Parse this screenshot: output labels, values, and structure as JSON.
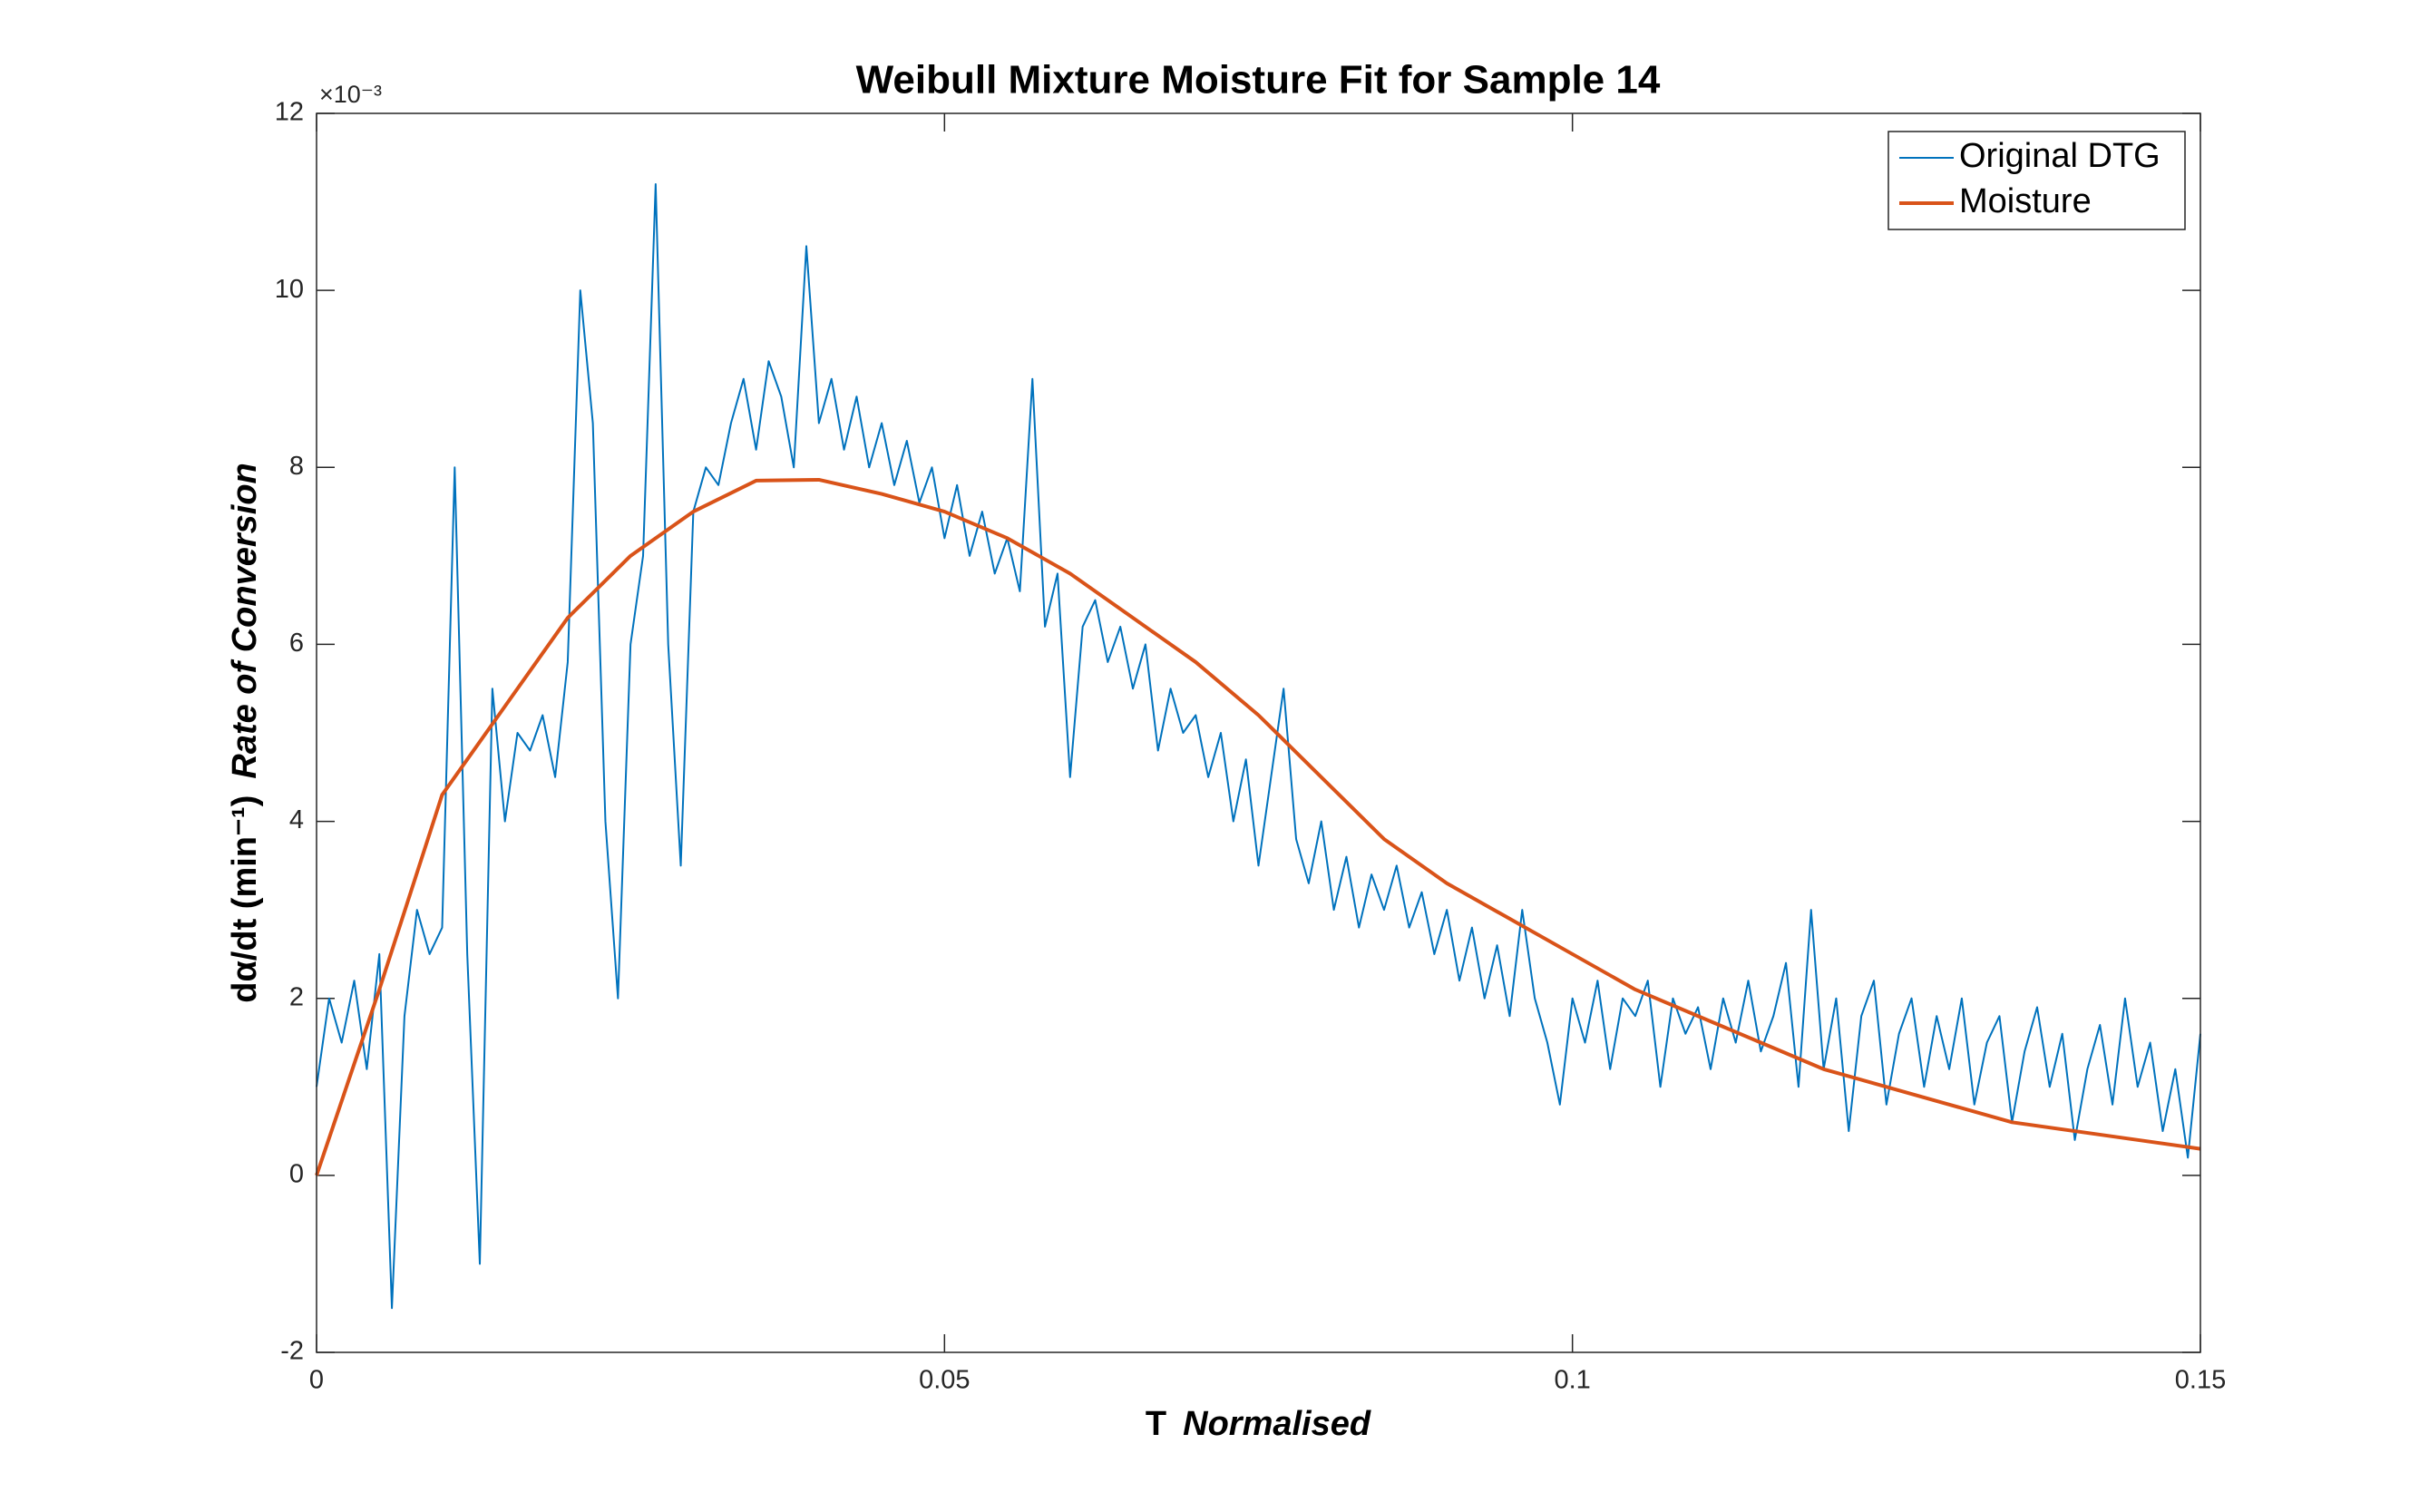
{
  "chart_data": {
    "type": "line",
    "title": "Weibull Mixture Moisture Fit for Sample 14",
    "xlabel": "T",
    "xlabel_note": "Normalised",
    "ylabel": "dα/dt (min⁻¹)",
    "ylabel_note": "Rate of Conversion",
    "y_exponent": "×10⁻³",
    "xlim": [
      0,
      0.15
    ],
    "xticks": [
      0,
      0.05,
      0.1,
      0.15
    ],
    "ylim": [
      -0.002,
      0.012
    ],
    "yticks": [
      {
        "value": -0.002,
        "label": "-2"
      },
      {
        "value": 0,
        "label": "0"
      },
      {
        "value": 0.002,
        "label": "2"
      },
      {
        "value": 0.004,
        "label": "4"
      },
      {
        "value": 0.006,
        "label": "6"
      },
      {
        "value": 0.008,
        "label": "8"
      },
      {
        "value": 0.01,
        "label": "10"
      },
      {
        "value": 0.012,
        "label": "12"
      }
    ],
    "legend": "top-right",
    "series": [
      {
        "name": "Original DTG",
        "color": "#0072BD",
        "x": [
          0,
          0.001,
          0.002,
          0.003,
          0.004,
          0.005,
          0.006,
          0.007,
          0.008,
          0.009,
          0.01,
          0.011,
          0.012,
          0.013,
          0.014,
          0.015,
          0.016,
          0.017,
          0.018,
          0.019,
          0.02,
          0.021,
          0.022,
          0.023,
          0.024,
          0.025,
          0.026,
          0.027,
          0.028,
          0.029,
          0.03,
          0.031,
          0.032,
          0.033,
          0.034,
          0.035,
          0.036,
          0.037,
          0.038,
          0.039,
          0.04,
          0.041,
          0.042,
          0.043,
          0.044,
          0.045,
          0.046,
          0.047,
          0.048,
          0.049,
          0.05,
          0.051,
          0.052,
          0.053,
          0.054,
          0.055,
          0.056,
          0.057,
          0.058,
          0.059,
          0.06,
          0.061,
          0.062,
          0.063,
          0.064,
          0.065,
          0.066,
          0.067,
          0.068,
          0.069,
          0.07,
          0.071,
          0.072,
          0.073,
          0.074,
          0.075,
          0.076,
          0.077,
          0.078,
          0.079,
          0.08,
          0.081,
          0.082,
          0.083,
          0.084,
          0.085,
          0.086,
          0.087,
          0.088,
          0.089,
          0.09,
          0.091,
          0.092,
          0.093,
          0.094,
          0.095,
          0.096,
          0.097,
          0.098,
          0.099,
          0.1,
          0.101,
          0.102,
          0.103,
          0.104,
          0.105,
          0.106,
          0.107,
          0.108,
          0.109,
          0.11,
          0.111,
          0.112,
          0.113,
          0.114,
          0.115,
          0.116,
          0.117,
          0.118,
          0.119,
          0.12,
          0.121,
          0.122,
          0.123,
          0.124,
          0.125,
          0.126,
          0.127,
          0.128,
          0.129,
          0.13,
          0.131,
          0.132,
          0.133,
          0.134,
          0.135,
          0.136,
          0.137,
          0.138,
          0.139,
          0.14,
          0.141,
          0.142,
          0.143,
          0.144,
          0.145,
          0.146,
          0.147,
          0.148,
          0.149,
          0.15
        ],
        "values": [
          0.001,
          0.002,
          0.0015,
          0.0022,
          0.0012,
          0.0025,
          -0.0015,
          0.0018,
          0.003,
          0.0025,
          0.0028,
          0.008,
          0.0025,
          -0.001,
          0.0055,
          0.004,
          0.005,
          0.0048,
          0.0052,
          0.0045,
          0.0058,
          0.01,
          0.0085,
          0.004,
          0.002,
          0.006,
          0.007,
          0.0112,
          0.006,
          0.0035,
          0.0075,
          0.008,
          0.0078,
          0.0085,
          0.009,
          0.0082,
          0.0092,
          0.0088,
          0.008,
          0.0105,
          0.0085,
          0.009,
          0.0082,
          0.0088,
          0.008,
          0.0085,
          0.0078,
          0.0083,
          0.0076,
          0.008,
          0.0072,
          0.0078,
          0.007,
          0.0075,
          0.0068,
          0.0072,
          0.0066,
          0.009,
          0.0062,
          0.0068,
          0.0045,
          0.0062,
          0.0065,
          0.0058,
          0.0062,
          0.0055,
          0.006,
          0.0048,
          0.0055,
          0.005,
          0.0052,
          0.0045,
          0.005,
          0.004,
          0.0047,
          0.0035,
          0.0045,
          0.0055,
          0.0038,
          0.0033,
          0.004,
          0.003,
          0.0036,
          0.0028,
          0.0034,
          0.003,
          0.0035,
          0.0028,
          0.0032,
          0.0025,
          0.003,
          0.0022,
          0.0028,
          0.002,
          0.0026,
          0.0018,
          0.003,
          0.002,
          0.0015,
          0.0008,
          0.002,
          0.0015,
          0.0022,
          0.0012,
          0.002,
          0.0018,
          0.0022,
          0.001,
          0.002,
          0.0016,
          0.0019,
          0.0012,
          0.002,
          0.0015,
          0.0022,
          0.0014,
          0.0018,
          0.0024,
          0.001,
          0.003,
          0.0012,
          0.002,
          0.0005,
          0.0018,
          0.0022,
          0.0008,
          0.0016,
          0.002,
          0.001,
          0.0018,
          0.0012,
          0.002,
          0.0008,
          0.0015,
          0.0018,
          0.0006,
          0.0014,
          0.0019,
          0.001,
          0.0016,
          0.0004,
          0.0012,
          0.0017,
          0.0008,
          0.002,
          0.001,
          0.0015,
          0.0005,
          0.0012,
          0.0002,
          0.0016
        ]
      },
      {
        "name": "Moisture",
        "color": "#D95319",
        "x": [
          0,
          0.005,
          0.01,
          0.015,
          0.02,
          0.025,
          0.03,
          0.035,
          0.04,
          0.045,
          0.05,
          0.055,
          0.06,
          0.065,
          0.07,
          0.075,
          0.08,
          0.085,
          0.09,
          0.095,
          0.1,
          0.105,
          0.11,
          0.115,
          0.12,
          0.125,
          0.13,
          0.135,
          0.14,
          0.145,
          0.15
        ],
        "values": [
          0,
          0.0021,
          0.0043,
          0.0053,
          0.0063,
          0.007,
          0.0075,
          0.00785,
          0.00786,
          0.0077,
          0.0075,
          0.0072,
          0.0068,
          0.0063,
          0.0058,
          0.0052,
          0.0045,
          0.0038,
          0.0033,
          0.0029,
          0.0025,
          0.0021,
          0.0018,
          0.0015,
          0.0012,
          0.001,
          0.0008,
          0.0006,
          0.0005,
          0.0004,
          0.0003
        ]
      }
    ]
  }
}
